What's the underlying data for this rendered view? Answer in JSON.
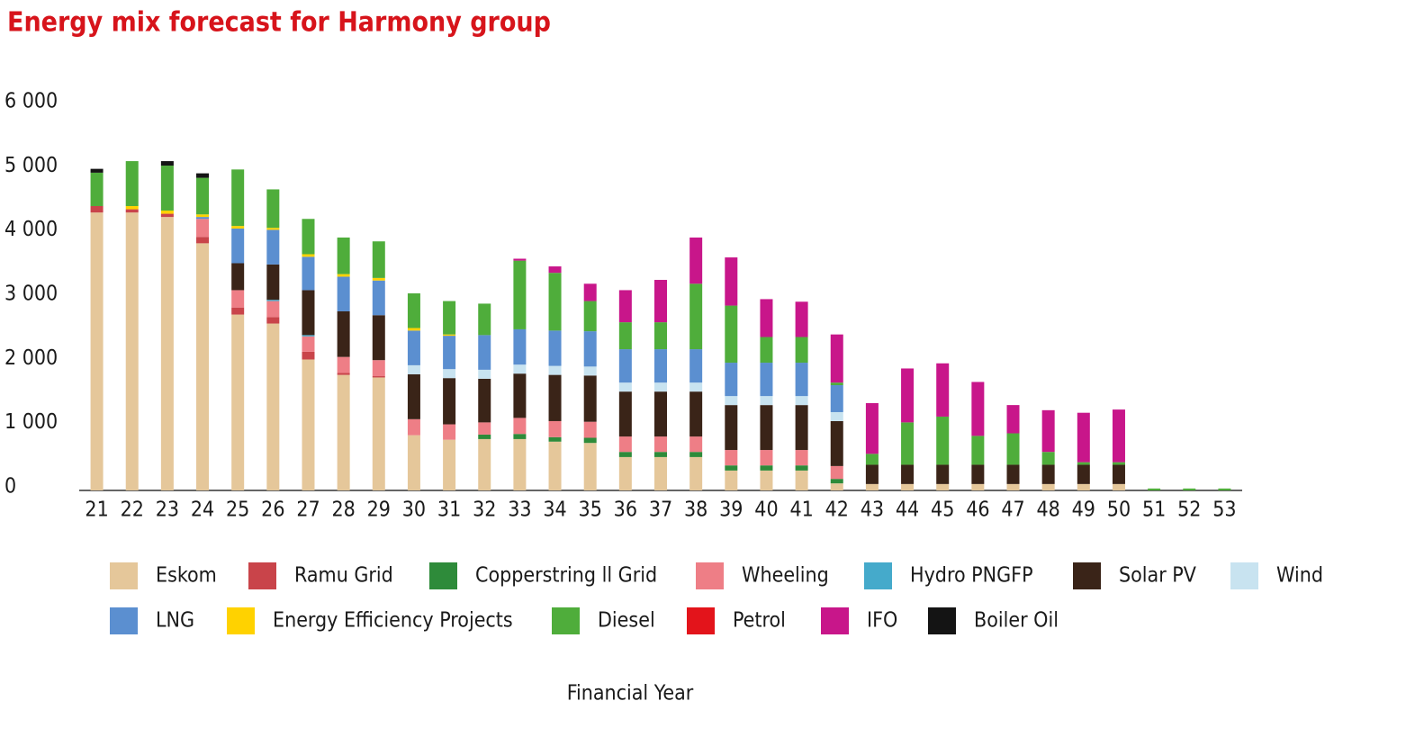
{
  "chart_data": {
    "type": "stacked-bar",
    "title": "Energy mix forecast for Harmony group",
    "x_label": "Financial Year",
    "categories": [
      "21",
      "22",
      "23",
      "24",
      "25",
      "26",
      "27",
      "28",
      "29",
      "30",
      "31",
      "32",
      "33",
      "34",
      "35",
      "36",
      "37",
      "38",
      "39",
      "40",
      "41",
      "42",
      "43",
      "44",
      "45",
      "46",
      "47",
      "48",
      "49",
      "50",
      "51",
      "52",
      "53"
    ],
    "ylim": [
      0,
      6000
    ],
    "yticks": [
      0,
      {
        "value": 1000,
        "label": "1 000"
      },
      {
        "value": 2000,
        "label": "2 000"
      },
      {
        "value": 3000,
        "label": "3 000"
      },
      {
        "value": 4000,
        "label": "4 000"
      },
      {
        "value": 5000,
        "label": "5 000"
      },
      {
        "value": 6000,
        "label": "6 000"
      }
    ],
    "grid": false,
    "series": [
      {
        "name": "Eskom",
        "color": "#e5c79a",
        "values": [
          4330,
          4330,
          4260,
          3850,
          2740,
          2600,
          2040,
          1800,
          1760,
          860,
          790,
          800,
          800,
          760,
          740,
          520,
          520,
          520,
          310,
          310,
          310,
          110,
          100,
          100,
          100,
          100,
          100,
          100,
          100,
          100,
          0,
          0,
          0
        ]
      },
      {
        "name": "Ramu Grid",
        "color": "#c9444a",
        "values": [
          100,
          50,
          50,
          100,
          110,
          100,
          120,
          30,
          20,
          0,
          0,
          0,
          0,
          0,
          0,
          0,
          0,
          0,
          0,
          0,
          0,
          0,
          0,
          0,
          0,
          0,
          0,
          0,
          0,
          0,
          0,
          0,
          0
        ]
      },
      {
        "name": "Copperstring ll Grid",
        "color": "#2e8b3a",
        "values": [
          0,
          0,
          0,
          0,
          0,
          0,
          0,
          0,
          0,
          0,
          0,
          70,
          80,
          70,
          80,
          80,
          80,
          80,
          80,
          80,
          80,
          70,
          0,
          0,
          0,
          0,
          0,
          0,
          0,
          0,
          0,
          0,
          0
        ]
      },
      {
        "name": "Wheeling",
        "color": "#ee7e86",
        "values": [
          0,
          0,
          0,
          280,
          270,
          250,
          240,
          250,
          250,
          250,
          240,
          190,
          250,
          250,
          250,
          240,
          240,
          240,
          240,
          240,
          240,
          200,
          0,
          0,
          0,
          0,
          0,
          0,
          0,
          0,
          0,
          0,
          0
        ]
      },
      {
        "name": "Hydro PNGFP",
        "color": "#45aacb",
        "values": [
          0,
          0,
          0,
          0,
          0,
          20,
          20,
          0,
          0,
          0,
          0,
          0,
          0,
          0,
          0,
          0,
          0,
          0,
          0,
          0,
          0,
          0,
          0,
          0,
          0,
          0,
          0,
          0,
          0,
          0,
          0,
          0,
          0
        ]
      },
      {
        "name": "Solar PV",
        "color": "#3a2418",
        "values": [
          0,
          0,
          0,
          0,
          420,
          550,
          700,
          710,
          700,
          700,
          720,
          680,
          690,
          720,
          720,
          700,
          700,
          700,
          700,
          700,
          700,
          700,
          300,
          300,
          300,
          300,
          300,
          300,
          300,
          300,
          0,
          0,
          0
        ]
      },
      {
        "name": "Wind",
        "color": "#c8e3f0",
        "values": [
          0,
          0,
          0,
          0,
          0,
          0,
          0,
          0,
          0,
          140,
          140,
          140,
          140,
          140,
          140,
          140,
          140,
          140,
          140,
          140,
          140,
          140,
          0,
          0,
          0,
          0,
          0,
          0,
          0,
          0,
          0,
          0,
          0
        ]
      },
      {
        "name": "LNG",
        "color": "#5b8fd0",
        "values": [
          0,
          0,
          0,
          30,
          540,
          540,
          520,
          540,
          540,
          540,
          520,
          540,
          550,
          550,
          550,
          520,
          520,
          520,
          520,
          520,
          520,
          420,
          0,
          0,
          0,
          0,
          0,
          0,
          0,
          0,
          0,
          0,
          0
        ]
      },
      {
        "name": "Energy Efficiency Projects",
        "color": "#ffd200",
        "values": [
          0,
          50,
          50,
          40,
          40,
          30,
          40,
          40,
          40,
          40,
          20,
          0,
          0,
          0,
          0,
          0,
          0,
          0,
          0,
          0,
          0,
          0,
          0,
          0,
          0,
          0,
          0,
          0,
          0,
          0,
          0,
          0,
          0
        ]
      },
      {
        "name": "Diesel",
        "color": "#4fad3b",
        "values": [
          520,
          700,
          700,
          570,
          880,
          600,
          550,
          570,
          570,
          540,
          520,
          490,
          1070,
          900,
          470,
          420,
          420,
          1020,
          890,
          400,
          400,
          40,
          170,
          660,
          750,
          450,
          490,
          200,
          40,
          40,
          30,
          30,
          30
        ]
      },
      {
        "name": "Petrol",
        "color": "#e3141b",
        "values": [
          0,
          0,
          0,
          0,
          0,
          0,
          0,
          0,
          0,
          0,
          0,
          0,
          0,
          0,
          0,
          0,
          0,
          0,
          0,
          0,
          0,
          0,
          0,
          0,
          0,
          0,
          0,
          0,
          0,
          0,
          0,
          0,
          0
        ]
      },
      {
        "name": "IFO",
        "color": "#c8168a",
        "values": [
          0,
          0,
          0,
          0,
          0,
          0,
          0,
          0,
          0,
          0,
          0,
          0,
          30,
          100,
          270,
          500,
          660,
          720,
          750,
          590,
          550,
          750,
          790,
          840,
          830,
          840,
          440,
          650,
          770,
          820,
          0,
          0,
          0
        ]
      },
      {
        "name": "Boiler Oil",
        "color": "#141414",
        "values": [
          60,
          0,
          70,
          70,
          0,
          0,
          0,
          0,
          0,
          0,
          0,
          0,
          0,
          0,
          0,
          0,
          0,
          0,
          0,
          0,
          0,
          0,
          0,
          0,
          0,
          0,
          0,
          0,
          0,
          0,
          0,
          0,
          0
        ]
      }
    ]
  }
}
